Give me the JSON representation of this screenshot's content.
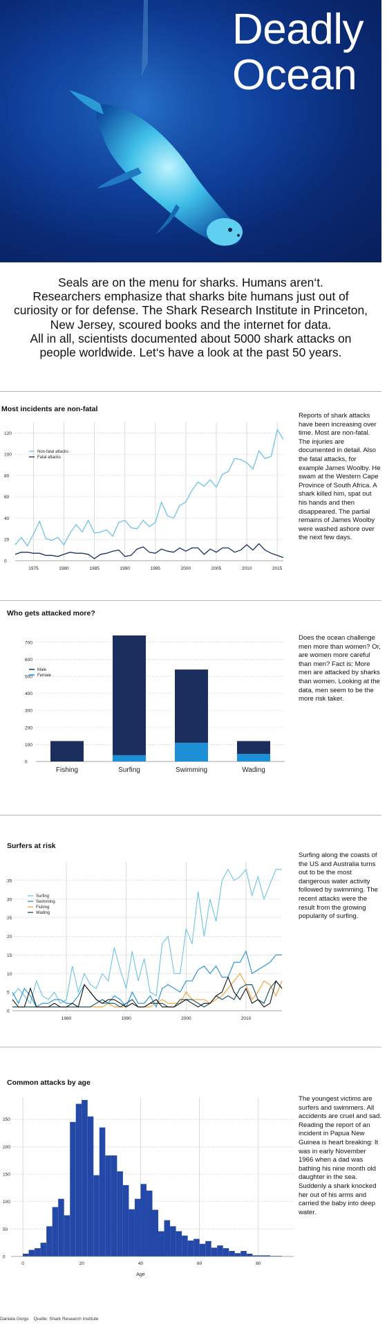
{
  "hero": {
    "title_line1": "Deadly",
    "title_line2": "Ocean"
  },
  "intro": {
    "lines": [
      "Seals are on the menu for sharks. Humans aren‘t.",
      "Researchers emphasize that sharks bite humans just out of",
      "curiosity or for defense. The Shark Research Institute in Princeton,",
      "New Jersey, scoured books and the internet for data.",
      "All in all, scientists documented about 5000 shark attacks on",
      "people worldwide. Let‘s have a look at the past 50 years."
    ]
  },
  "sections": {
    "s1": {
      "title": "Most incidents are non-fatal",
      "text": "Reports of shark attacks have been increasing over time. Most are non-fatal. The injuries are documented in detail. Also the fatal attacks, for example James Woolby. He swam at the Western Cape Province of South Africa. A shark killed him, spat out his hands and then disappeared. The partial remains of James Woolby were washed ashore over the next few days."
    },
    "s2": {
      "title": "Who gets attacked more?",
      "text": "Does the ocean challenge men more than women? Or, are women more careful than men? Fact is: More men are attacked by sharks than women. Looking at the data, men seem to be the more risk taker."
    },
    "s3": {
      "title": "Surfers at risk",
      "text": "Surfing along the coasts of the US and Australia turns out to be the most dangerous water activity followed by swimming. The recent attacks were the result from the growing popularity of surfing."
    },
    "s4": {
      "title": "Common attacks by age",
      "text": "The youngest victims are surfers and swimmers. All accidents are cruel and sad. Reading the report of an incident in Papua New Guinea is heart breaking: It was in early November 1966 when a dad was bathing his nine month old daughter in the sea. Suddenly a shark knocked her out of his arms and carried the baby into deep water."
    }
  },
  "footer": {
    "author": "Daniela Gorgs",
    "source": "Quelle: Shark Research Institute"
  },
  "colors": {
    "dark_navy": "#1b2f5e",
    "light_blue": "#6ec3e4",
    "medium_blue": "#1d8fd6",
    "orange": "#f0a030",
    "teal_dark": "#0d4a5c",
    "black": "#111111",
    "hist_blue": "#2448a8",
    "grid": "#bbbbbb"
  },
  "chart_data": [
    {
      "type": "line",
      "ylim": [
        0,
        130
      ],
      "yticks": [
        0,
        20,
        40,
        60,
        80,
        100,
        120
      ],
      "xticks": [
        1975,
        1980,
        1985,
        1990,
        1995,
        2000,
        2005,
        2010,
        2015
      ],
      "x": [
        1972,
        1973,
        1974,
        1975,
        1976,
        1977,
        1978,
        1979,
        1980,
        1981,
        1982,
        1983,
        1984,
        1985,
        1986,
        1987,
        1988,
        1989,
        1990,
        1991,
        1992,
        1993,
        1994,
        1995,
        1996,
        1997,
        1998,
        1999,
        2000,
        2001,
        2002,
        2003,
        2004,
        2005,
        2006,
        2007,
        2008,
        2009,
        2010,
        2011,
        2012,
        2013,
        2014,
        2015,
        2016
      ],
      "series": [
        {
          "name": "Non-fatal attacks",
          "color": "#6ec3e4",
          "values": [
            15,
            22,
            14,
            25,
            37,
            21,
            19,
            22,
            15,
            26,
            34,
            27,
            38,
            26,
            27,
            29,
            23,
            36,
            38,
            31,
            30,
            38,
            32,
            36,
            55,
            42,
            40,
            52,
            55,
            66,
            74,
            70,
            76,
            69,
            81,
            84,
            96,
            95,
            92,
            86,
            103,
            96,
            98,
            123,
            114
          ]
        },
        {
          "name": "Fatal attacks",
          "color": "#1b2f5e",
          "values": [
            6,
            8,
            8,
            7,
            7,
            5,
            5,
            4,
            6,
            8,
            7,
            7,
            6,
            2,
            6,
            7,
            9,
            10,
            4,
            5,
            11,
            13,
            8,
            7,
            11,
            9,
            8,
            12,
            9,
            12,
            12,
            6,
            11,
            8,
            12,
            12,
            8,
            10,
            15,
            10,
            16,
            10,
            7,
            5,
            3
          ]
        }
      ]
    },
    {
      "type": "bar",
      "stacked": true,
      "ylim": [
        0,
        760
      ],
      "yticks": [
        0,
        100,
        200,
        300,
        400,
        500,
        600,
        700
      ],
      "categories": [
        "Fishing",
        "Surfing",
        "Swimming",
        "Wading"
      ],
      "series": [
        {
          "name": "Male",
          "color": "#1b2f5e",
          "values": [
            120,
            703,
            430,
            76
          ]
        },
        {
          "name": "Female",
          "color": "#1d8fd6",
          "values": [
            0,
            37,
            110,
            44
          ]
        }
      ]
    },
    {
      "type": "line",
      "ylim": [
        0,
        40
      ],
      "yticks": [
        0,
        5,
        10,
        15,
        20,
        25,
        30,
        35
      ],
      "xticks": [
        1980,
        1990,
        2000,
        2010
      ],
      "x": [
        1971,
        1972,
        1973,
        1974,
        1975,
        1976,
        1977,
        1978,
        1979,
        1980,
        1981,
        1982,
        1983,
        1984,
        1985,
        1986,
        1987,
        1988,
        1989,
        1990,
        1991,
        1992,
        1993,
        1994,
        1995,
        1996,
        1997,
        1998,
        1999,
        2000,
        2001,
        2002,
        2003,
        2004,
        2005,
        2006,
        2007,
        2008,
        2009,
        2010,
        2011,
        2012,
        2013,
        2014,
        2015,
        2016
      ],
      "series": [
        {
          "name": "Surfing",
          "color": "#6ec3e4",
          "values": [
            4,
            6,
            4,
            2,
            8,
            4,
            3,
            5,
            2,
            3,
            12,
            5,
            10,
            7,
            6,
            10,
            8,
            17,
            11,
            6,
            16,
            8,
            14,
            5,
            4,
            18,
            20,
            10,
            10,
            22,
            18,
            32,
            20,
            30,
            24,
            35,
            38,
            35,
            36,
            38,
            31,
            36,
            30,
            34,
            38,
            38
          ]
        },
        {
          "name": "Swimming",
          "color": "#1d8fd6",
          "values": [
            5,
            2,
            6,
            4,
            1,
            2,
            2,
            3,
            3,
            2,
            2,
            4,
            7,
            5,
            3,
            2,
            2,
            4,
            3,
            1,
            5,
            2,
            2,
            4,
            1,
            6,
            7,
            6,
            5,
            8,
            8,
            11,
            12,
            10,
            12,
            9,
            9,
            13,
            13,
            16,
            10,
            11,
            12,
            13,
            15,
            15
          ]
        },
        {
          "name": "Fishing",
          "color": "#f0a030",
          "values": [
            1,
            1,
            1,
            1,
            1,
            1,
            1,
            1,
            1,
            1,
            1,
            1,
            1,
            1,
            1,
            1,
            2,
            1,
            1,
            1,
            2,
            1,
            1,
            1,
            2,
            3,
            2,
            2,
            2,
            5,
            3,
            3,
            3,
            2,
            3,
            4,
            6,
            8,
            10,
            7,
            3,
            5,
            8,
            7,
            4,
            8
          ]
        },
        {
          "name": "Wading",
          "color": "#0d4a5c",
          "values": [
            1,
            1,
            1,
            1,
            1,
            1,
            1,
            1,
            1,
            1,
            1,
            1,
            1,
            1,
            2,
            3,
            2,
            2,
            1,
            2,
            3,
            1,
            1,
            2,
            2,
            2,
            1,
            1,
            3,
            3,
            3,
            2,
            1,
            2,
            4,
            3,
            4,
            3,
            6,
            7,
            7,
            3,
            2,
            6,
            8,
            6
          ]
        },
        {
          "name": "",
          "color": "#111111",
          "values": [
            3,
            1,
            1,
            6,
            1,
            1,
            1,
            2,
            1,
            1,
            2,
            1,
            7,
            5,
            3,
            2,
            3,
            3,
            2,
            1,
            2,
            1,
            1,
            2,
            3,
            1,
            1,
            1,
            2,
            3,
            2,
            1,
            2,
            2,
            4,
            5,
            9,
            5,
            3,
            6,
            2,
            3,
            1,
            2,
            8,
            6
          ]
        }
      ]
    },
    {
      "type": "bar",
      "histogram": true,
      "xlim": [
        -4,
        92
      ],
      "ylim": [
        0,
        290
      ],
      "yticks": [
        0,
        50,
        100,
        150,
        200,
        250
      ],
      "xticks": [
        0,
        20,
        40,
        60,
        80
      ],
      "xlabel": "Age",
      "bar_width": 2,
      "bins_start": [
        0,
        2,
        4,
        6,
        8,
        10,
        12,
        14,
        16,
        18,
        20,
        22,
        24,
        26,
        28,
        30,
        32,
        34,
        36,
        38,
        40,
        42,
        44,
        46,
        48,
        50,
        52,
        54,
        56,
        58,
        60,
        62,
        64,
        66,
        68,
        70,
        72,
        74,
        76,
        78,
        80,
        82,
        84,
        86
      ],
      "values": [
        5,
        12,
        15,
        25,
        55,
        90,
        105,
        75,
        245,
        278,
        285,
        255,
        148,
        235,
        184,
        184,
        155,
        130,
        86,
        105,
        132,
        120,
        85,
        46,
        66,
        55,
        46,
        38,
        29,
        32,
        23,
        28,
        16,
        20,
        15,
        10,
        6,
        10,
        5,
        2,
        2,
        2,
        1,
        1
      ]
    }
  ]
}
